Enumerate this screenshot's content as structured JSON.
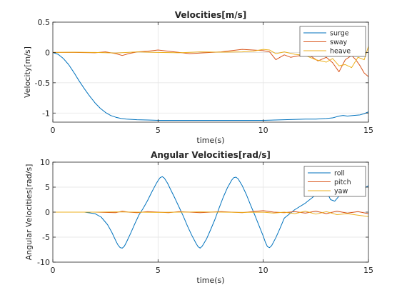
{
  "chart_data": [
    {
      "type": "line",
      "title": "Velocities[m/s]",
      "xlabel": "time(s)",
      "ylabel": "Velocity[m/s]",
      "xlim": [
        0,
        15
      ],
      "ylim": [
        -1.15,
        0.5
      ],
      "xticks": [
        0,
        5,
        10,
        15
      ],
      "yticks": [
        -1,
        -0.5,
        0,
        0.5
      ],
      "ytick_labels": [
        "-1",
        "-0.5",
        "0",
        "0.5"
      ],
      "grid": true,
      "legend_position": "top-right",
      "series": [
        {
          "name": "surge",
          "color": "#0072BD",
          "x": [
            0,
            0.25,
            0.5,
            0.75,
            1,
            1.25,
            1.5,
            1.75,
            2,
            2.25,
            2.5,
            2.75,
            3,
            3.25,
            3.5,
            4,
            4.5,
            5,
            6,
            7,
            8,
            9,
            10,
            11,
            12,
            12.5,
            13,
            13.3,
            13.6,
            13.8,
            14,
            14.3,
            14.6,
            14.8,
            15
          ],
          "y": [
            0,
            -0.03,
            -0.1,
            -0.2,
            -0.33,
            -0.47,
            -0.6,
            -0.72,
            -0.83,
            -0.92,
            -0.99,
            -1.04,
            -1.07,
            -1.09,
            -1.1,
            -1.11,
            -1.115,
            -1.12,
            -1.12,
            -1.12,
            -1.12,
            -1.12,
            -1.12,
            -1.11,
            -1.1,
            -1.1,
            -1.09,
            -1.08,
            -1.05,
            -1.04,
            -1.05,
            -1.04,
            -1.03,
            -1.01,
            -0.98
          ]
        },
        {
          "name": "sway",
          "color": "#D95319",
          "x": [
            0,
            1,
            2,
            2.5,
            3,
            3.3,
            3.6,
            4,
            4.5,
            5,
            5.5,
            6,
            6.5,
            7,
            7.5,
            8,
            8.5,
            9,
            9.5,
            10,
            10.3,
            10.6,
            11,
            11.3,
            11.6,
            12,
            12.3,
            12.6,
            13,
            13.3,
            13.6,
            13.9,
            14.2,
            14.4,
            14.6,
            14.8,
            15
          ],
          "y": [
            0,
            0,
            -0.005,
            0.01,
            -0.02,
            -0.05,
            -0.02,
            0.01,
            0.02,
            0.04,
            0.02,
            0,
            -0.02,
            -0.01,
            0,
            0.01,
            0.03,
            0.05,
            0.04,
            0.03,
            0.01,
            -0.12,
            -0.04,
            -0.08,
            -0.06,
            -0.04,
            -0.07,
            -0.14,
            -0.08,
            -0.17,
            -0.32,
            -0.12,
            -0.05,
            -0.12,
            -0.22,
            -0.34,
            -0.4
          ]
        },
        {
          "name": "heave",
          "color": "#EDB120",
          "x": [
            0,
            1,
            2,
            3,
            4,
            5,
            6,
            7,
            8,
            9,
            9.5,
            10,
            10.3,
            10.6,
            11,
            11.5,
            12,
            12.5,
            13,
            13.3,
            13.6,
            13.9,
            14.2,
            14.5,
            14.8,
            15
          ],
          "y": [
            0,
            0.005,
            0,
            -0.01,
            0.01,
            0,
            -0.005,
            0.01,
            0.005,
            0.01,
            0.02,
            0.05,
            0.04,
            -0.02,
            0.01,
            -0.03,
            -0.05,
            -0.12,
            -0.16,
            -0.1,
            -0.22,
            -0.2,
            -0.25,
            -0.08,
            -0.12,
            0.1
          ]
        }
      ]
    },
    {
      "type": "line",
      "title": "Angular Velocities[rad/s]",
      "xlabel": "time(s)",
      "ylabel": "Angular Velocities[rad/s]",
      "xlim": [
        0,
        15
      ],
      "ylim": [
        -10,
        10
      ],
      "xticks": [
        0,
        5,
        10,
        15
      ],
      "yticks": [
        -10,
        -5,
        0,
        5,
        10
      ],
      "ytick_labels": [
        "-10",
        "-5",
        "0",
        "5",
        "10"
      ],
      "grid": true,
      "legend_position": "top-right",
      "series": [
        {
          "name": "roll",
          "color": "#0072BD",
          "x": [
            0,
            1,
            1.5,
            2,
            2.3,
            2.6,
            2.8,
            3,
            3.1,
            3.2,
            3.3,
            3.4,
            3.5,
            3.7,
            3.9,
            4.1,
            4.3,
            4.5,
            4.7,
            4.9,
            5.0,
            5.1,
            5.2,
            5.3,
            5.45,
            5.6,
            5.8,
            6.0,
            6.2,
            6.4,
            6.6,
            6.8,
            6.9,
            7.0,
            7.1,
            7.3,
            7.5,
            7.7,
            7.9,
            8.1,
            8.3,
            8.5,
            8.6,
            8.7,
            8.8,
            9.0,
            9.2,
            9.4,
            9.6,
            9.8,
            10.0,
            10.1,
            10.2,
            10.3,
            10.4,
            10.6,
            10.8,
            11.0,
            11.5,
            12.0,
            12.3,
            12.6,
            12.8,
            13.0,
            13.2,
            13.4,
            13.6,
            13.8,
            14.0,
            14.3,
            14.6,
            15
          ],
          "y": [
            0,
            0,
            0,
            -0.3,
            -1.0,
            -2.5,
            -4.0,
            -5.8,
            -6.6,
            -7.1,
            -7.2,
            -6.8,
            -6.0,
            -4.2,
            -2.3,
            -0.5,
            0.8,
            2.3,
            4.0,
            5.6,
            6.3,
            6.9,
            7.1,
            6.8,
            5.8,
            4.5,
            2.8,
            1.0,
            -0.8,
            -2.8,
            -4.6,
            -6.2,
            -6.9,
            -7.2,
            -6.8,
            -5.4,
            -3.5,
            -1.5,
            0.8,
            3.0,
            4.9,
            6.4,
            6.9,
            7.0,
            6.7,
            5.3,
            3.5,
            1.4,
            -0.6,
            -2.7,
            -4.8,
            -6.0,
            -6.9,
            -7.1,
            -6.7,
            -5.1,
            -3.2,
            -1.2,
            0.5,
            1.8,
            2.8,
            3.8,
            4.3,
            4.2,
            2.5,
            2.2,
            3.2,
            4.2,
            3.8,
            4.0,
            4.3,
            5.3
          ]
        },
        {
          "name": "pitch",
          "color": "#D95319",
          "x": [
            0,
            1,
            2,
            3,
            3.3,
            3.6,
            4,
            4.5,
            5,
            5.5,
            6,
            6.5,
            7,
            7.5,
            8,
            8.5,
            9,
            9.5,
            10,
            10.5,
            11,
            11.5,
            12,
            12.5,
            13,
            13.5,
            14,
            14.5,
            15
          ],
          "y": [
            0,
            0,
            0,
            -0.1,
            0.2,
            0,
            -0.1,
            0.1,
            0,
            -0.1,
            0.1,
            0,
            -0.1,
            0,
            0.1,
            0,
            -0.1,
            0.1,
            0.3,
            0,
            -0.1,
            0.1,
            -0.2,
            0.2,
            -0.3,
            0.2,
            -0.2,
            0.1,
            -0.3
          ]
        },
        {
          "name": "yaw",
          "color": "#EDB120",
          "x": [
            0,
            1,
            2,
            3,
            4,
            5,
            6,
            7,
            8,
            9,
            10,
            10.5,
            11,
            11.5,
            12,
            12.5,
            13,
            13.5,
            14,
            14.5,
            15
          ],
          "y": [
            0,
            0,
            0,
            0.05,
            0,
            -0.05,
            0,
            0.05,
            0,
            -0.05,
            0,
            -0.2,
            0,
            -0.3,
            0.2,
            -0.4,
            0.1,
            -0.5,
            -0.3,
            -0.6,
            -0.9
          ]
        }
      ]
    }
  ]
}
